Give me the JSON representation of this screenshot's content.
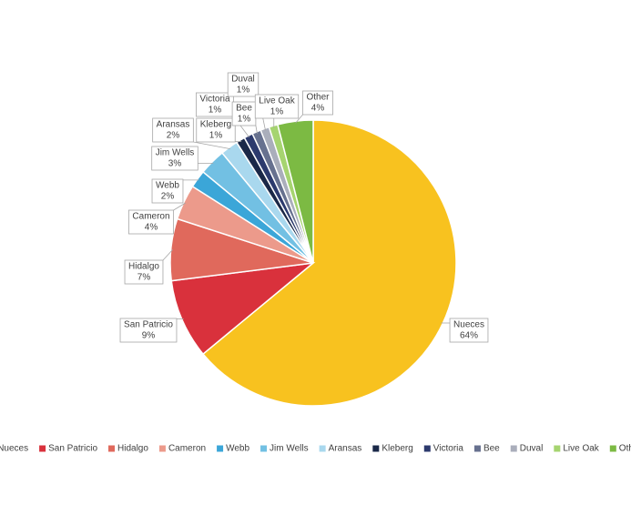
{
  "chart_data": {
    "type": "pie",
    "categories": [
      "Nueces",
      "San Patricio",
      "Hidalgo",
      "Cameron",
      "Webb",
      "Jim Wells",
      "Aransas",
      "Kleberg",
      "Victoria",
      "Bee",
      "Duval",
      "Live Oak",
      "Other"
    ],
    "values": [
      64,
      9,
      7,
      4,
      2,
      3,
      2,
      1,
      1,
      1,
      1,
      1,
      4
    ],
    "value_labels": [
      "64%",
      "9%",
      "7%",
      "4%",
      "2%",
      "3%",
      "2%",
      "1%",
      "1%",
      "1%",
      "1%",
      "1%",
      "4%"
    ],
    "colors": [
      "#f8c21f",
      "#d9313c",
      "#e0695c",
      "#ec9a8b",
      "#3ba6d8",
      "#72c0e3",
      "#a9d8ee",
      "#1a2848",
      "#2c3a6d",
      "#67718f",
      "#aaaebb",
      "#a6d470",
      "#7cba43"
    ],
    "legend": "bottom"
  }
}
